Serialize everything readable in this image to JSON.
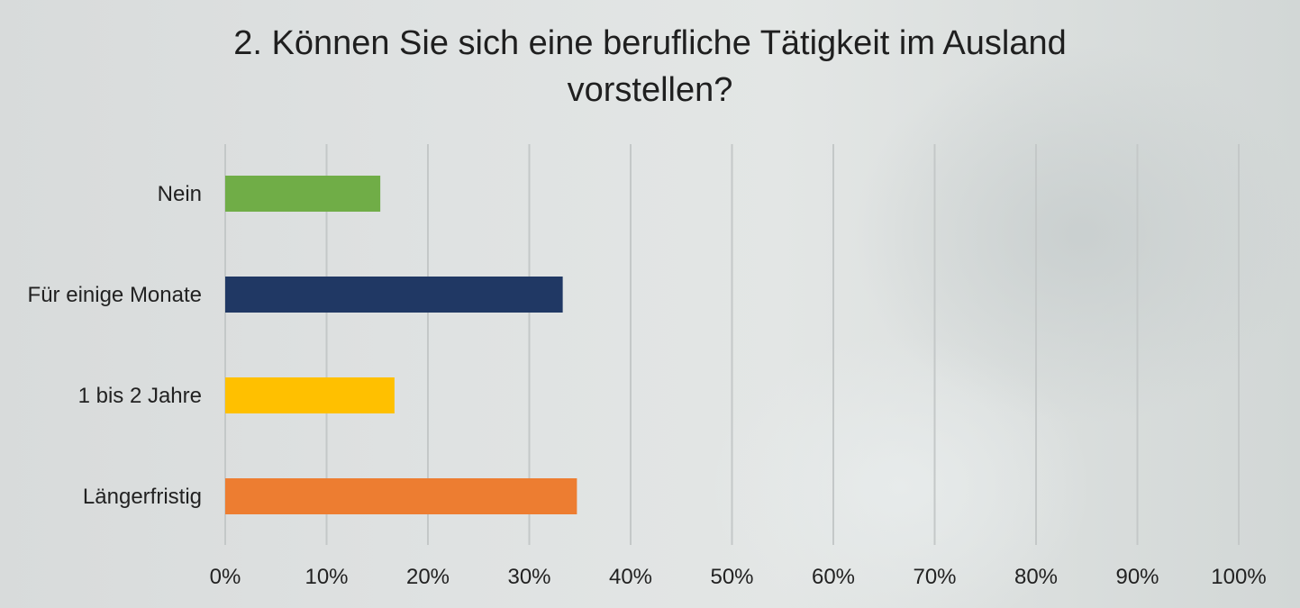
{
  "chart_data": {
    "type": "bar",
    "orientation": "horizontal",
    "title_lines": [
      "2. Können Sie sich eine berufliche Tätigkeit im Ausland",
      "vorstellen?"
    ],
    "categories": [
      "Nein",
      "Für einige Monate",
      "1 bis 2 Jahre",
      "Längerfristig"
    ],
    "values": [
      15.3,
      33.3,
      16.7,
      34.7
    ],
    "colors": [
      "#70ad47",
      "#203864",
      "#ffc000",
      "#ed7d31"
    ],
    "xlim": [
      0,
      100
    ],
    "xticks": [
      "0%",
      "10%",
      "20%",
      "30%",
      "40%",
      "50%",
      "60%",
      "70%",
      "80%",
      "90%",
      "100%"
    ],
    "grid": true,
    "legend": "none"
  }
}
